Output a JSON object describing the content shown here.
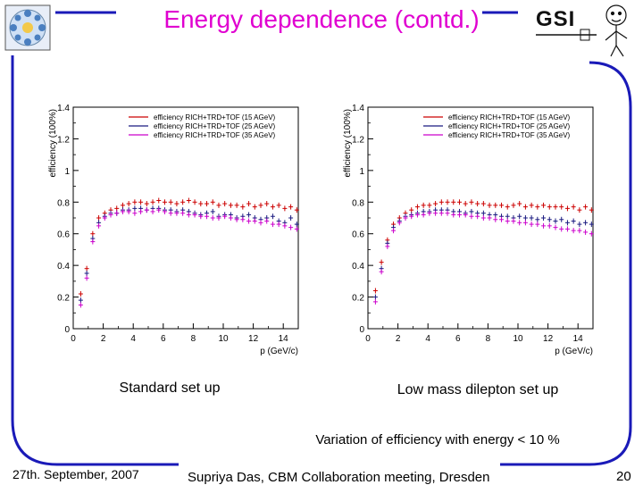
{
  "title": "Energy dependence (contd.)",
  "captions": {
    "left": "Standard set up",
    "right": "Low mass dilepton set up"
  },
  "summary": "Variation of efficiency with energy < 10 %",
  "footer": {
    "date": "27th. September, 2007",
    "center": "Supriya Das, CBM Collaboration meeting, Dresden",
    "page": "20"
  },
  "logos": {
    "left": "cbm-logo",
    "right": "GSI",
    "right_icon": "gsi-mascot-icon"
  },
  "colors": {
    "title": "#e000d0",
    "frame": "#1a1ab8",
    "series_15": "#cc0000",
    "series_25": "#1a1a80",
    "series_35": "#cc00cc"
  },
  "chart_data": [
    {
      "type": "scatter",
      "xlabel": "p (GeV/c)",
      "ylabel": "efficiency (100%)",
      "xlim": [
        0,
        15
      ],
      "ylim": [
        0,
        1.4
      ],
      "xticks": [
        "0",
        "2",
        "4",
        "6",
        "8",
        "10",
        "12",
        "14"
      ],
      "yticks": [
        "0",
        "0.2",
        "0.4",
        "0.6",
        "0.8",
        "1",
        "1.2",
        "1.4"
      ],
      "legend_position": "top-right",
      "series": [
        {
          "name": "efficiency RICH+TRD+TOF (15 AGeV)",
          "color": "#cc0000",
          "x": [
            0.5,
            0.9,
            1.3,
            1.7,
            2.1,
            2.5,
            2.9,
            3.3,
            3.7,
            4.1,
            4.5,
            4.9,
            5.3,
            5.7,
            6.1,
            6.5,
            6.9,
            7.3,
            7.7,
            8.1,
            8.5,
            8.9,
            9.3,
            9.7,
            10.1,
            10.5,
            10.9,
            11.3,
            11.7,
            12.1,
            12.5,
            12.9,
            13.3,
            13.7,
            14.1,
            14.5,
            14.9
          ],
          "y": [
            0.22,
            0.38,
            0.6,
            0.7,
            0.73,
            0.75,
            0.76,
            0.78,
            0.79,
            0.8,
            0.8,
            0.79,
            0.8,
            0.81,
            0.8,
            0.8,
            0.79,
            0.8,
            0.81,
            0.8,
            0.79,
            0.79,
            0.8,
            0.78,
            0.79,
            0.78,
            0.78,
            0.77,
            0.79,
            0.77,
            0.78,
            0.79,
            0.77,
            0.78,
            0.76,
            0.77,
            0.75
          ]
        },
        {
          "name": "efficiency RICH+TRD+TOF (25 AGeV)",
          "color": "#1a1a80",
          "x": [
            0.5,
            0.9,
            1.3,
            1.7,
            2.1,
            2.5,
            2.9,
            3.3,
            3.7,
            4.1,
            4.5,
            4.9,
            5.3,
            5.7,
            6.1,
            6.5,
            6.9,
            7.3,
            7.7,
            8.1,
            8.5,
            8.9,
            9.3,
            9.7,
            10.1,
            10.5,
            10.9,
            11.3,
            11.7,
            12.1,
            12.5,
            12.9,
            13.3,
            13.7,
            14.1,
            14.5,
            14.9
          ],
          "y": [
            0.18,
            0.35,
            0.57,
            0.67,
            0.71,
            0.73,
            0.73,
            0.75,
            0.75,
            0.76,
            0.76,
            0.75,
            0.76,
            0.76,
            0.75,
            0.75,
            0.74,
            0.75,
            0.74,
            0.73,
            0.72,
            0.73,
            0.74,
            0.71,
            0.72,
            0.72,
            0.7,
            0.71,
            0.72,
            0.7,
            0.69,
            0.7,
            0.71,
            0.68,
            0.67,
            0.7,
            0.66
          ]
        },
        {
          "name": "efficiency RICH+TRD+TOF (35 AGeV)",
          "color": "#cc00cc",
          "x": [
            0.5,
            0.9,
            1.3,
            1.7,
            2.1,
            2.5,
            2.9,
            3.3,
            3.7,
            4.1,
            4.5,
            4.9,
            5.3,
            5.7,
            6.1,
            6.5,
            6.9,
            7.3,
            7.7,
            8.1,
            8.5,
            8.9,
            9.3,
            9.7,
            10.1,
            10.5,
            10.9,
            11.3,
            11.7,
            12.1,
            12.5,
            12.9,
            13.3,
            13.7,
            14.1,
            14.5,
            14.9
          ],
          "y": [
            0.15,
            0.32,
            0.55,
            0.65,
            0.7,
            0.72,
            0.73,
            0.74,
            0.74,
            0.73,
            0.74,
            0.75,
            0.74,
            0.75,
            0.74,
            0.73,
            0.73,
            0.73,
            0.72,
            0.72,
            0.71,
            0.71,
            0.7,
            0.7,
            0.71,
            0.7,
            0.69,
            0.69,
            0.68,
            0.68,
            0.67,
            0.68,
            0.66,
            0.66,
            0.65,
            0.64,
            0.63
          ]
        }
      ]
    },
    {
      "type": "scatter",
      "xlabel": "p (GeV/c)",
      "ylabel": "efficiency (100%)",
      "xlim": [
        0,
        15
      ],
      "ylim": [
        0,
        1.4
      ],
      "xticks": [
        "0",
        "2",
        "4",
        "6",
        "8",
        "10",
        "12",
        "14"
      ],
      "yticks": [
        "0",
        "0.2",
        "0.4",
        "0.6",
        "0.8",
        "1",
        "1.2",
        "1.4"
      ],
      "legend_position": "top-right",
      "series": [
        {
          "name": "efficiency RICH+TRD+TOF (15 AGeV)",
          "color": "#cc0000",
          "x": [
            0.5,
            0.9,
            1.3,
            1.7,
            2.1,
            2.5,
            2.9,
            3.3,
            3.7,
            4.1,
            4.5,
            4.9,
            5.3,
            5.7,
            6.1,
            6.5,
            6.9,
            7.3,
            7.7,
            8.1,
            8.5,
            8.9,
            9.3,
            9.7,
            10.1,
            10.5,
            10.9,
            11.3,
            11.7,
            12.1,
            12.5,
            12.9,
            13.3,
            13.7,
            14.1,
            14.5,
            14.9
          ],
          "y": [
            0.24,
            0.42,
            0.56,
            0.66,
            0.7,
            0.73,
            0.75,
            0.77,
            0.78,
            0.78,
            0.79,
            0.8,
            0.8,
            0.8,
            0.8,
            0.79,
            0.8,
            0.79,
            0.79,
            0.78,
            0.78,
            0.78,
            0.77,
            0.78,
            0.79,
            0.77,
            0.78,
            0.77,
            0.78,
            0.77,
            0.77,
            0.77,
            0.76,
            0.77,
            0.75,
            0.77,
            0.75
          ]
        },
        {
          "name": "efficiency RICH+TRD+TOF (25 AGeV)",
          "color": "#1a1a80",
          "x": [
            0.5,
            0.9,
            1.3,
            1.7,
            2.1,
            2.5,
            2.9,
            3.3,
            3.7,
            4.1,
            4.5,
            4.9,
            5.3,
            5.7,
            6.1,
            6.5,
            6.9,
            7.3,
            7.7,
            8.1,
            8.5,
            8.9,
            9.3,
            9.7,
            10.1,
            10.5,
            10.9,
            11.3,
            11.7,
            12.1,
            12.5,
            12.9,
            13.3,
            13.7,
            14.1,
            14.5,
            14.9
          ],
          "y": [
            0.2,
            0.38,
            0.54,
            0.64,
            0.68,
            0.71,
            0.72,
            0.73,
            0.74,
            0.74,
            0.75,
            0.75,
            0.75,
            0.74,
            0.74,
            0.73,
            0.74,
            0.73,
            0.73,
            0.72,
            0.72,
            0.71,
            0.71,
            0.7,
            0.71,
            0.7,
            0.7,
            0.69,
            0.7,
            0.69,
            0.68,
            0.69,
            0.67,
            0.68,
            0.66,
            0.67,
            0.66
          ]
        },
        {
          "name": "efficiency RICH+TRD+TOF (35 AGeV)",
          "color": "#cc00cc",
          "x": [
            0.5,
            0.9,
            1.3,
            1.7,
            2.1,
            2.5,
            2.9,
            3.3,
            3.7,
            4.1,
            4.5,
            4.9,
            5.3,
            5.7,
            6.1,
            6.5,
            6.9,
            7.3,
            7.7,
            8.1,
            8.5,
            8.9,
            9.3,
            9.7,
            10.1,
            10.5,
            10.9,
            11.3,
            11.7,
            12.1,
            12.5,
            12.9,
            13.3,
            13.7,
            14.1,
            14.5,
            14.9
          ],
          "y": [
            0.17,
            0.36,
            0.52,
            0.62,
            0.67,
            0.7,
            0.71,
            0.72,
            0.72,
            0.73,
            0.73,
            0.73,
            0.73,
            0.72,
            0.72,
            0.72,
            0.71,
            0.71,
            0.7,
            0.7,
            0.69,
            0.69,
            0.68,
            0.68,
            0.67,
            0.67,
            0.66,
            0.66,
            0.65,
            0.65,
            0.64,
            0.63,
            0.63,
            0.62,
            0.62,
            0.61,
            0.6
          ]
        }
      ]
    }
  ]
}
